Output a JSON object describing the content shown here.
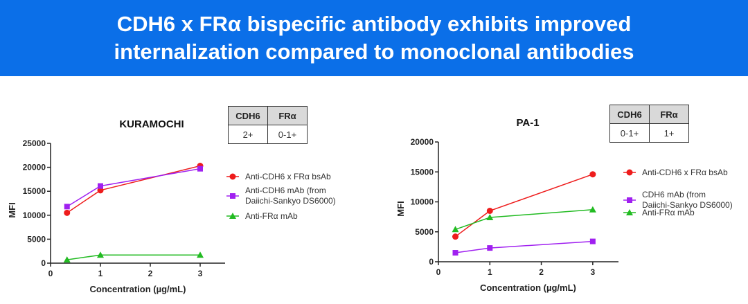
{
  "title": {
    "line1": "CDH6 x FRα bispecific antibody exhibits improved",
    "line2": "internalization compared to monoclonal antibodies"
  },
  "colors": {
    "banner": "#0b6fe8",
    "red": "#ee1c1c",
    "purple": "#a020f0",
    "green": "#22bb22"
  },
  "tables": [
    {
      "headers": [
        "CDH6",
        "FRα"
      ],
      "values": [
        "2+",
        "0-1+"
      ]
    },
    {
      "headers": [
        "CDH6",
        "FRα"
      ],
      "values": [
        "0-1+",
        "1+"
      ]
    }
  ],
  "chart_data": [
    {
      "type": "line",
      "title": "KURAMOCHI",
      "xlabel": "Concentration (µg/mL)",
      "ylabel": "MFI",
      "xlim": [
        0,
        3.5
      ],
      "ylim": [
        0,
        25000
      ],
      "xticks": [
        0,
        1,
        2,
        3
      ],
      "yticks": [
        0,
        5000,
        10000,
        15000,
        20000,
        25000
      ],
      "legend": "right",
      "grid": false,
      "x": [
        0.33,
        1,
        3
      ],
      "series": [
        {
          "name": "Anti-CDH6 x FRα bsAb",
          "marker": "circle",
          "color": "#ee1c1c",
          "values": [
            10500,
            15200,
            20300
          ]
        },
        {
          "name": "Anti-CDH6 mAb (from Daiichi-Sankyo DS6000)",
          "marker": "square",
          "color": "#a020f0",
          "values": [
            11800,
            16100,
            19700
          ]
        },
        {
          "name": "Anti-FRα mAb",
          "marker": "triangle",
          "color": "#22bb22",
          "values": [
            700,
            1700,
            1700
          ]
        }
      ]
    },
    {
      "type": "line",
      "title": "PA-1",
      "xlabel": "Concentration (µg/mL)",
      "ylabel": "MFI",
      "xlim": [
        0,
        3.5
      ],
      "ylim": [
        0,
        20000
      ],
      "xticks": [
        0,
        1,
        2,
        3
      ],
      "yticks": [
        0,
        5000,
        10000,
        15000,
        20000
      ],
      "legend": "right",
      "grid": false,
      "x": [
        0.33,
        1,
        3
      ],
      "series": [
        {
          "name": "Anti-CDH6 x FRα bsAb",
          "marker": "circle",
          "color": "#ee1c1c",
          "values": [
            4200,
            8500,
            14600
          ]
        },
        {
          "name": "CDH6 mAb (from Daiichi-Sankyo DS6000)",
          "marker": "square",
          "color": "#a020f0",
          "values": [
            1500,
            2300,
            3400
          ]
        },
        {
          "name": "Anti-FRα mAb",
          "marker": "triangle",
          "color": "#22bb22",
          "values": [
            5400,
            7400,
            8700
          ]
        }
      ]
    }
  ]
}
